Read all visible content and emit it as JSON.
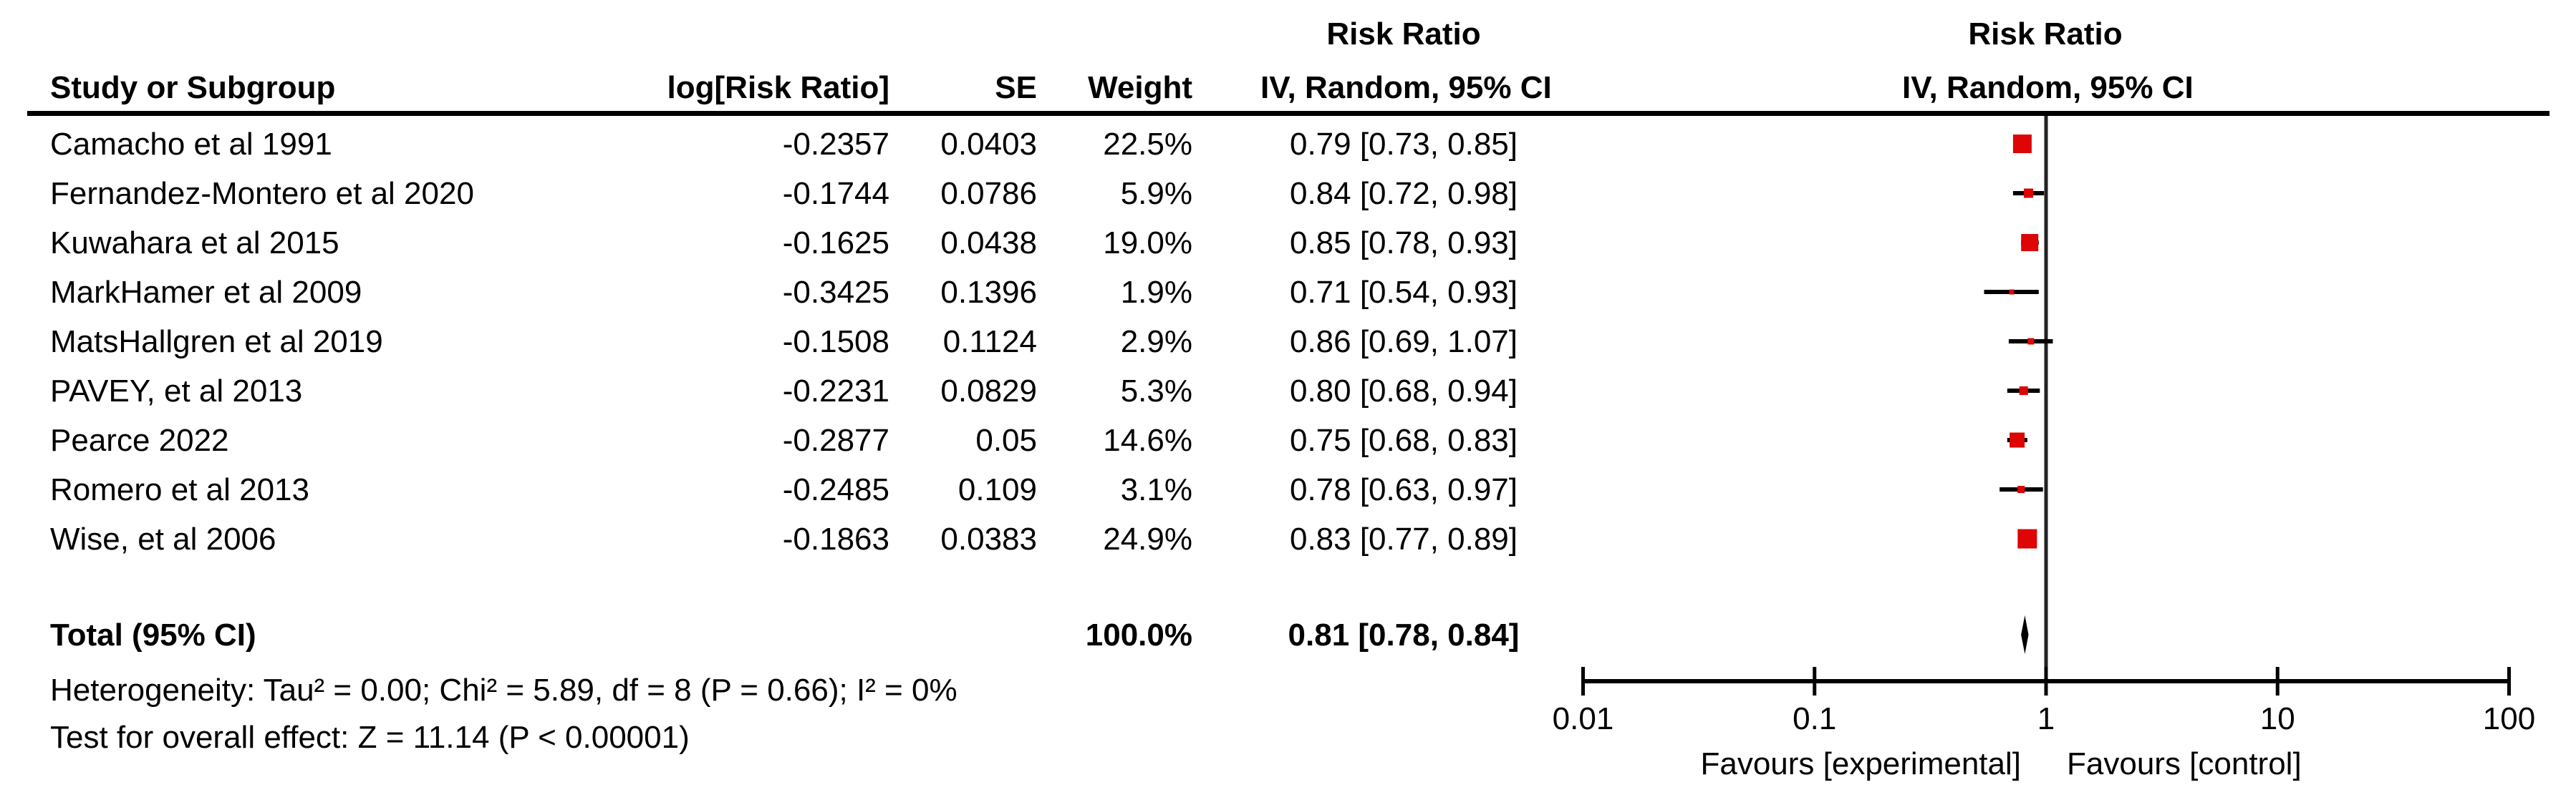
{
  "chart_data": {
    "type": "forest",
    "header": {
      "effect_label_left": "Risk Ratio",
      "effect_label_right": "Risk Ratio",
      "study_col": "Study or Subgroup",
      "log_col": "log[Risk Ratio]",
      "se_col": "SE",
      "weight_col": "Weight",
      "ci_method_left": "IV, Random, 95% CI",
      "ci_method_right": "IV, Random, 95% CI"
    },
    "studies": [
      {
        "name": "Camacho et al 1991",
        "log_rr": "-0.2357",
        "se": "0.0403",
        "weight_label": "22.5%",
        "weight": 22.5,
        "rr": 0.79,
        "ci_low": 0.73,
        "ci_high": 0.85,
        "ci_text": "0.79 [0.73, 0.85]"
      },
      {
        "name": "Fernandez-Montero et al 2020",
        "log_rr": "-0.1744",
        "se": "0.0786",
        "weight_label": "5.9%",
        "weight": 5.9,
        "rr": 0.84,
        "ci_low": 0.72,
        "ci_high": 0.98,
        "ci_text": "0.84 [0.72, 0.98]"
      },
      {
        "name": "Kuwahara et al 2015",
        "log_rr": "-0.1625",
        "se": "0.0438",
        "weight_label": "19.0%",
        "weight": 19.0,
        "rr": 0.85,
        "ci_low": 0.78,
        "ci_high": 0.93,
        "ci_text": "0.85 [0.78, 0.93]"
      },
      {
        "name": "MarkHamer et al 2009",
        "log_rr": "-0.3425",
        "se": "0.1396",
        "weight_label": "1.9%",
        "weight": 1.9,
        "rr": 0.71,
        "ci_low": 0.54,
        "ci_high": 0.93,
        "ci_text": "0.71 [0.54, 0.93]"
      },
      {
        "name": "MatsHallgren et al 2019",
        "log_rr": "-0.1508",
        "se": "0.1124",
        "weight_label": "2.9%",
        "weight": 2.9,
        "rr": 0.86,
        "ci_low": 0.69,
        "ci_high": 1.07,
        "ci_text": "0.86 [0.69, 1.07]"
      },
      {
        "name": "PAVEY, et al 2013",
        "log_rr": "-0.2231",
        "se": "0.0829",
        "weight_label": "5.3%",
        "weight": 5.3,
        "rr": 0.8,
        "ci_low": 0.68,
        "ci_high": 0.94,
        "ci_text": "0.80 [0.68, 0.94]"
      },
      {
        "name": "Pearce 2022",
        "log_rr": "-0.2877",
        "se": "0.05",
        "weight_label": "14.6%",
        "weight": 14.6,
        "rr": 0.75,
        "ci_low": 0.68,
        "ci_high": 0.83,
        "ci_text": "0.75 [0.68, 0.83]"
      },
      {
        "name": "Romero et al 2013",
        "log_rr": "-0.2485",
        "se": "0.109",
        "weight_label": "3.1%",
        "weight": 3.1,
        "rr": 0.78,
        "ci_low": 0.63,
        "ci_high": 0.97,
        "ci_text": "0.78 [0.63, 0.97]"
      },
      {
        "name": "Wise, et al 2006",
        "log_rr": "-0.1863",
        "se": "0.0383",
        "weight_label": "24.9%",
        "weight": 24.9,
        "rr": 0.83,
        "ci_low": 0.77,
        "ci_high": 0.89,
        "ci_text": "0.83 [0.77, 0.89]"
      }
    ],
    "total": {
      "label": "Total (95% CI)",
      "weight_label": "100.0%",
      "rr": 0.81,
      "ci_low": 0.78,
      "ci_high": 0.84,
      "ci_text": "0.81 [0.78, 0.84]"
    },
    "footnotes": {
      "heterogeneity": "Heterogeneity: Tau² = 0.00; Chi² = 5.89, df = 8 (P = 0.66); I² = 0%",
      "overall_effect": "Test for overall effect: Z = 11.14 (P < 0.00001)"
    },
    "axis": {
      "scale": "log",
      "min": 0.01,
      "max": 100,
      "ticks": [
        0.01,
        0.1,
        1,
        10,
        100
      ],
      "tick_labels": [
        "0.01",
        "0.1",
        "1",
        "10",
        "100"
      ],
      "null_line": 1,
      "favours_left": "Favours [experimental]",
      "favours_right": "Favours [control]"
    },
    "colors": {
      "marker": "#dd0505",
      "line": "#000000",
      "null_line": "#222222",
      "diamond": "#000000"
    }
  }
}
